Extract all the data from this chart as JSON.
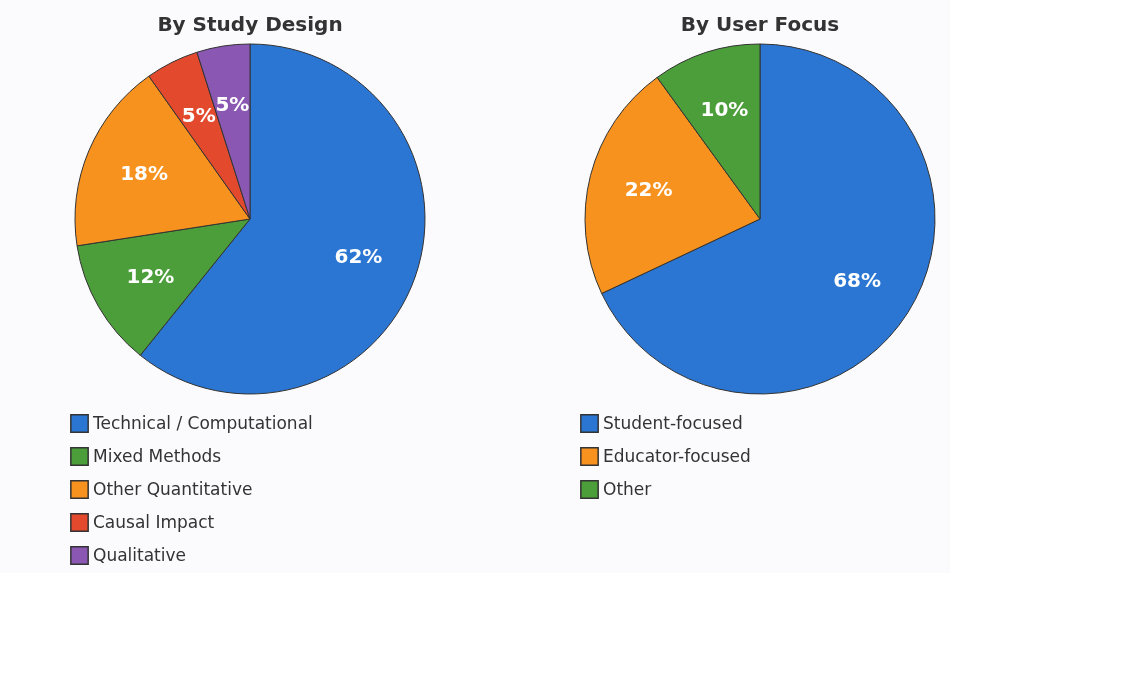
{
  "chart_data": [
    {
      "type": "pie",
      "title": "By Study Design",
      "categories": [
        "Technical / Computational",
        "Mixed Methods",
        "Other Quantitative",
        "Causal Impact",
        "Qualitative"
      ],
      "values": [
        62,
        12,
        18,
        5,
        5
      ],
      "value_labels": [
        "62%",
        "12%",
        "18%",
        "5%",
        "5%"
      ],
      "colors": [
        "#2b76d2",
        "#4b9e3a",
        "#f7921e",
        "#e2492d",
        "#8a58b3"
      ],
      "legend": "bottom"
    },
    {
      "type": "pie",
      "title": "By User Focus",
      "categories": [
        "Student-focused",
        "Educator-focused",
        "Other"
      ],
      "values": [
        68,
        22,
        10
      ],
      "value_labels": [
        "68%",
        "22%",
        "10%"
      ],
      "colors": [
        "#2b76d2",
        "#f7921e",
        "#4b9e3a"
      ],
      "legend": "bottom"
    }
  ]
}
